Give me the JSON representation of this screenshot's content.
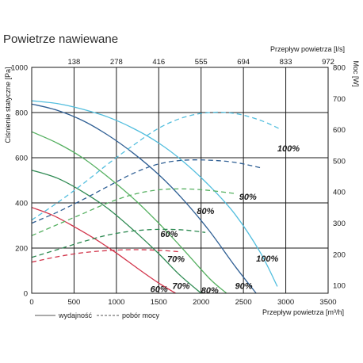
{
  "chart_data": {
    "type": "line",
    "title": "Powietrze nawiewane",
    "xlabel": "Przepływ powietrza [m³/h]",
    "ylabel": "Ciśnienie statyczne [Pa]",
    "x2label": "Przepływ powietrza [l/s]",
    "y2label": "Moc [W]",
    "xlim": [
      0,
      3500
    ],
    "ylim": [
      0,
      1000
    ],
    "y2lim": [
      75,
      800
    ],
    "x_ticks": [
      "0",
      "500",
      "1000",
      "1500",
      "2000",
      "2500",
      "3000",
      "3500"
    ],
    "y_ticks": [
      "0",
      "200",
      "400",
      "600",
      "800",
      "1000"
    ],
    "x2_ticks": [
      {
        "label": "138",
        "at": 500
      },
      {
        "label": "278",
        "at": 1000
      },
      {
        "label": "416",
        "at": 1500
      },
      {
        "label": "555",
        "at": 2000
      },
      {
        "label": "694",
        "at": 2500
      },
      {
        "label": "833",
        "at": 3000
      },
      {
        "label": "972",
        "at": 3500
      }
    ],
    "y2_ticks": [
      {
        "label": "100",
        "value": 100
      },
      {
        "label": "200",
        "value": 200
      },
      {
        "label": "300",
        "value": 300
      },
      {
        "label": "400",
        "value": 400
      },
      {
        "label": "500",
        "value": 500
      },
      {
        "label": "600",
        "value": 600
      },
      {
        "label": "700",
        "value": 700
      },
      {
        "label": "800",
        "value": 800
      }
    ],
    "grid": true,
    "legend": {
      "position": "bottom-left",
      "items": [
        "wydajność",
        "pobór mocy"
      ]
    },
    "series": [
      {
        "kind": "pressure",
        "color": "#d2344a",
        "label": "60%",
        "label_at": [
          1400,
          5
        ],
        "x": [
          0,
          250,
          500,
          750,
          1000,
          1250,
          1500,
          1700
        ],
        "y": [
          380,
          345,
          295,
          240,
          178,
          110,
          45,
          0
        ]
      },
      {
        "kind": "pressure",
        "color": "#2e8a52",
        "label": "70%",
        "label_at": [
          1660,
          20
        ],
        "x": [
          0,
          300,
          600,
          900,
          1200,
          1500,
          1750,
          2000
        ],
        "y": [
          545,
          510,
          450,
          375,
          280,
          175,
          80,
          0
        ]
      },
      {
        "kind": "pressure",
        "color": "#55b060",
        "label": "80%",
        "label_at": [
          2000,
          0
        ],
        "x": [
          0,
          300,
          600,
          900,
          1200,
          1500,
          1800,
          2100,
          2300
        ],
        "y": [
          715,
          665,
          600,
          515,
          420,
          310,
          190,
          65,
          0
        ]
      },
      {
        "kind": "pressure",
        "color": "#2f5f94",
        "label": "90%",
        "label_at": [
          2400,
          20
        ],
        "x": [
          0,
          300,
          600,
          900,
          1200,
          1500,
          1800,
          2100,
          2400,
          2650
        ],
        "y": [
          838,
          810,
          765,
          700,
          620,
          525,
          410,
          275,
          120,
          0
        ]
      },
      {
        "kind": "pressure",
        "color": "#52bede",
        "label": "100%",
        "label_at": [
          2650,
          140
        ],
        "x": [
          0,
          300,
          600,
          900,
          1200,
          1500,
          1800,
          2100,
          2400,
          2700,
          2900
        ],
        "y": [
          852,
          840,
          815,
          780,
          730,
          665,
          580,
          475,
          350,
          180,
          30
        ]
      },
      {
        "kind": "power",
        "color": "#d2344a",
        "label": "60%",
        "label_at": [
          1520,
          255
        ],
        "x": [
          0,
          300,
          600,
          900,
          1200,
          1500,
          1750
        ],
        "y": [
          175,
          192,
          205,
          212,
          215,
          213,
          208
        ]
      },
      {
        "kind": "power",
        "color": "#2e8a52",
        "label": "70%",
        "label_at": [
          1600,
          175
        ],
        "x": [
          0,
          300,
          600,
          900,
          1200,
          1500,
          1800,
          2050
        ],
        "y": [
          190,
          215,
          240,
          262,
          275,
          280,
          278,
          270
        ]
      },
      {
        "kind": "power",
        "color": "#55b060",
        "label": "80%",
        "label_at": [
          1950,
          330
        ],
        "x": [
          0,
          300,
          600,
          900,
          1200,
          1500,
          1800,
          2100,
          2400
        ],
        "y": [
          260,
          295,
          330,
          365,
          392,
          407,
          410,
          405,
          395
        ]
      },
      {
        "kind": "power",
        "color": "#2f5f94",
        "label": "90%",
        "label_at": [
          2450,
          375
        ],
        "x": [
          0,
          300,
          600,
          900,
          1200,
          1500,
          1800,
          2100,
          2400,
          2700
        ],
        "y": [
          300,
          335,
          375,
          418,
          460,
          490,
          502,
          502,
          495,
          478
        ]
      },
      {
        "kind": "power",
        "color": "#52bede",
        "label": "100%",
        "label_at": [
          2900,
          530
        ],
        "x": [
          0,
          300,
          600,
          900,
          1200,
          1500,
          1800,
          2100,
          2400,
          2700,
          2950
        ],
        "y": [
          310,
          365,
          425,
          490,
          550,
          605,
          640,
          655,
          652,
          630,
          600
        ]
      }
    ]
  }
}
